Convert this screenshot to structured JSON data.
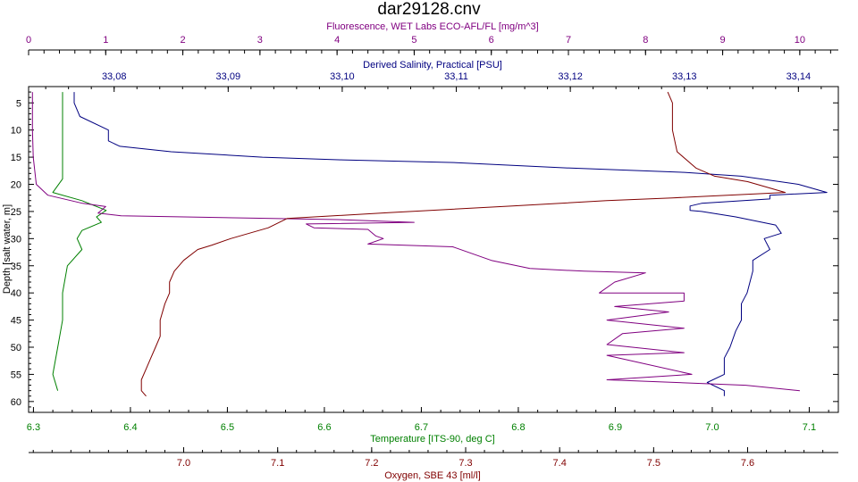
{
  "chart_data": {
    "type": "line",
    "title": "dar29128.cnv",
    "y_axis": {
      "label": "Depth [salt water, m]",
      "range": [
        2,
        62
      ],
      "ticks": [
        5,
        10,
        15,
        20,
        25,
        30,
        35,
        40,
        45,
        50,
        55,
        60
      ],
      "inverted": true
    },
    "axes": {
      "fluorescence": {
        "label": "Fluorescence, WET Labs ECO-AFL/FL [mg/m^3]",
        "position": "top-outer",
        "range": [
          0,
          10.5
        ],
        "ticks": [
          0,
          1,
          2,
          3,
          4,
          5,
          6,
          7,
          8,
          9,
          10
        ],
        "tick_labels": [
          "0",
          "1",
          "2",
          "3",
          "4",
          "5",
          "6",
          "7",
          "8",
          "9",
          "10"
        ],
        "color": "#800080"
      },
      "salinity": {
        "label": "Derived Salinity, Practical [PSU]",
        "position": "top-inner",
        "range": [
          33.0725,
          33.1435
        ],
        "ticks": [
          33.08,
          33.09,
          33.1,
          33.11,
          33.12,
          33.13,
          33.14
        ],
        "tick_labels": [
          "33,08",
          "33,09",
          "33,10",
          "33,11",
          "33,12",
          "33,13",
          "33,14"
        ],
        "color": "#000080"
      },
      "temperature": {
        "label": "Temperature [ITS-90, deg C]",
        "position": "bottom-inner",
        "range": [
          6.295,
          7.13
        ],
        "ticks": [
          6.3,
          6.4,
          6.5,
          6.6,
          6.7,
          6.8,
          6.9,
          7.0,
          7.1
        ],
        "tick_labels": [
          "6.3",
          "6.4",
          "6.5",
          "6.6",
          "6.7",
          "6.8",
          "6.9",
          "7.0",
          "7.1"
        ],
        "color": "#008000"
      },
      "oxygen": {
        "label": "Oxygen, SBE 43 [ml/l]",
        "position": "bottom-outer",
        "range": [
          6.835,
          7.6965
        ],
        "ticks": [
          7.0,
          7.1,
          7.2,
          7.3,
          7.4,
          7.5,
          7.6
        ],
        "tick_labels": [
          "7.0",
          "7.1",
          "7.2",
          "7.3",
          "7.4",
          "7.5",
          "7.6"
        ],
        "color": "#800000"
      }
    },
    "series": [
      {
        "axis": "temperature",
        "color": "#008000",
        "points": [
          [
            6.33,
            3
          ],
          [
            6.33,
            5
          ],
          [
            6.33,
            10
          ],
          [
            6.33,
            15
          ],
          [
            6.33,
            19
          ],
          [
            6.32,
            21.5
          ],
          [
            6.35,
            23
          ],
          [
            6.375,
            24.8
          ],
          [
            6.365,
            26
          ],
          [
            6.37,
            27
          ],
          [
            6.35,
            28.5
          ],
          [
            6.345,
            30
          ],
          [
            6.35,
            32
          ],
          [
            6.335,
            35
          ],
          [
            6.33,
            40
          ],
          [
            6.33,
            45
          ],
          [
            6.325,
            50
          ],
          [
            6.32,
            55
          ],
          [
            6.325,
            58
          ]
        ]
      },
      {
        "axis": "salinity",
        "color": "#000080",
        "points": [
          [
            33.0765,
            3
          ],
          [
            33.0765,
            5
          ],
          [
            33.077,
            7.5
          ],
          [
            33.0795,
            10
          ],
          [
            33.0795,
            12
          ],
          [
            33.0805,
            13
          ],
          [
            33.085,
            14
          ],
          [
            33.093,
            15
          ],
          [
            33.1,
            15.5
          ],
          [
            33.11,
            16
          ],
          [
            33.12,
            17
          ],
          [
            33.13,
            17.8
          ],
          [
            33.135,
            18.5
          ],
          [
            33.14,
            20
          ],
          [
            33.1425,
            21.5
          ],
          [
            33.1375,
            22
          ],
          [
            33.1375,
            22.7
          ],
          [
            33.1315,
            23.5
          ],
          [
            33.1305,
            24
          ],
          [
            33.1305,
            24.8
          ],
          [
            33.1315,
            25
          ],
          [
            33.1345,
            26
          ],
          [
            33.138,
            27.5
          ],
          [
            33.1385,
            29
          ],
          [
            33.137,
            30
          ],
          [
            33.1375,
            32
          ],
          [
            33.136,
            34
          ],
          [
            33.136,
            36
          ],
          [
            33.1355,
            40
          ],
          [
            33.135,
            42
          ],
          [
            33.135,
            45
          ],
          [
            33.1345,
            47
          ],
          [
            33.134,
            50
          ],
          [
            33.1335,
            52
          ],
          [
            33.1335,
            55
          ],
          [
            33.132,
            56.5
          ],
          [
            33.1335,
            58
          ],
          [
            33.1335,
            59
          ]
        ]
      },
      {
        "axis": "fluorescence",
        "color": "#800080",
        "points": [
          [
            0.05,
            3
          ],
          [
            0.05,
            10
          ],
          [
            0.06,
            15
          ],
          [
            0.1,
            20
          ],
          [
            0.25,
            22
          ],
          [
            0.7,
            23.5
          ],
          [
            1.0,
            24.1
          ],
          [
            0.9,
            25.3
          ],
          [
            1.2,
            25.8
          ],
          [
            4.0,
            26.5
          ],
          [
            5.0,
            27
          ],
          [
            3.6,
            27.3
          ],
          [
            3.7,
            28
          ],
          [
            4.4,
            28.3
          ],
          [
            4.5,
            29.5
          ],
          [
            4.6,
            30
          ],
          [
            4.4,
            31
          ],
          [
            5.5,
            31.5
          ],
          [
            6.0,
            34
          ],
          [
            6.5,
            35.5
          ],
          [
            7.2,
            36
          ],
          [
            8.0,
            36.3
          ],
          [
            7.6,
            38
          ],
          [
            7.4,
            40
          ],
          [
            8.5,
            40
          ],
          [
            8.5,
            41.5
          ],
          [
            7.6,
            42.5
          ],
          [
            8.3,
            43.5
          ],
          [
            7.5,
            45
          ],
          [
            8.5,
            46.5
          ],
          [
            7.7,
            47.5
          ],
          [
            7.5,
            49.5
          ],
          [
            8.5,
            51
          ],
          [
            7.5,
            51.5
          ],
          [
            8.6,
            55
          ],
          [
            7.5,
            56
          ],
          [
            9.3,
            57
          ],
          [
            10.0,
            58
          ]
        ]
      },
      {
        "axis": "oxygen",
        "color": "#800000",
        "points": [
          [
            7.515,
            3
          ],
          [
            7.52,
            5
          ],
          [
            7.52,
            10
          ],
          [
            7.525,
            14
          ],
          [
            7.545,
            17
          ],
          [
            7.565,
            18.5
          ],
          [
            7.6,
            19.5
          ],
          [
            7.64,
            21.5
          ],
          [
            7.52,
            22.5
          ],
          [
            7.45,
            23
          ],
          [
            7.35,
            24
          ],
          [
            7.22,
            25.2
          ],
          [
            7.11,
            26.3
          ],
          [
            7.09,
            28
          ],
          [
            7.05,
            30
          ],
          [
            7.03,
            31.2
          ],
          [
            7.015,
            32
          ],
          [
            7.0,
            34
          ],
          [
            6.99,
            36
          ],
          [
            6.985,
            38
          ],
          [
            6.985,
            40
          ],
          [
            6.98,
            42
          ],
          [
            6.975,
            45
          ],
          [
            6.975,
            48
          ],
          [
            6.97,
            50
          ],
          [
            6.965,
            52
          ],
          [
            6.96,
            54
          ],
          [
            6.955,
            56
          ],
          [
            6.955,
            58
          ],
          [
            6.96,
            59
          ]
        ]
      }
    ]
  }
}
